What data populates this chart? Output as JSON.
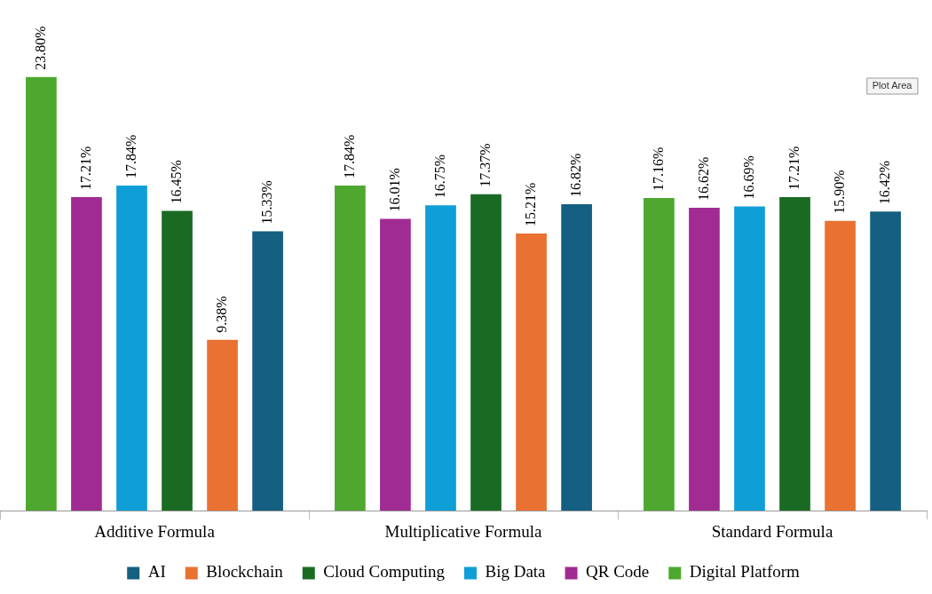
{
  "chart_data": {
    "type": "bar",
    "categories": [
      "Additive Formula",
      "Multiplicative Formula",
      "Standard Formula"
    ],
    "series": [
      {
        "name": "Digital Platform",
        "color": "#4ea72e",
        "values": [
          23.8,
          17.84,
          17.16
        ],
        "value_labels": [
          "23.80%",
          "17.84%",
          "17.16%"
        ]
      },
      {
        "name": "QR Code",
        "color": "#a02b93",
        "values": [
          17.21,
          16.01,
          16.62
        ],
        "value_labels": [
          "17.21%",
          "16.01%",
          "16.62%"
        ]
      },
      {
        "name": "Big Data",
        "color": "#0f9ed5",
        "values": [
          17.84,
          16.75,
          16.69
        ],
        "value_labels": [
          "17.84%",
          "16.75%",
          "16.69%"
        ]
      },
      {
        "name": "Cloud Computing",
        "color": "#196b24",
        "values": [
          16.45,
          17.37,
          17.21
        ],
        "value_labels": [
          "16.45%",
          "17.37%",
          "17.21%"
        ]
      },
      {
        "name": "Blockchain",
        "color": "#e97132",
        "values": [
          9.38,
          15.21,
          15.9
        ],
        "value_labels": [
          "9.38%",
          "15.21%",
          "15.90%"
        ]
      },
      {
        "name": "AI",
        "color": "#156082",
        "values": [
          15.33,
          16.82,
          16.42
        ],
        "value_labels": [
          "15.33%",
          "16.82%",
          "16.42%"
        ]
      }
    ],
    "tick_labels": "x",
    "grid": false,
    "legend": "bottom",
    "annotations": [
      "Plot Area"
    ]
  }
}
